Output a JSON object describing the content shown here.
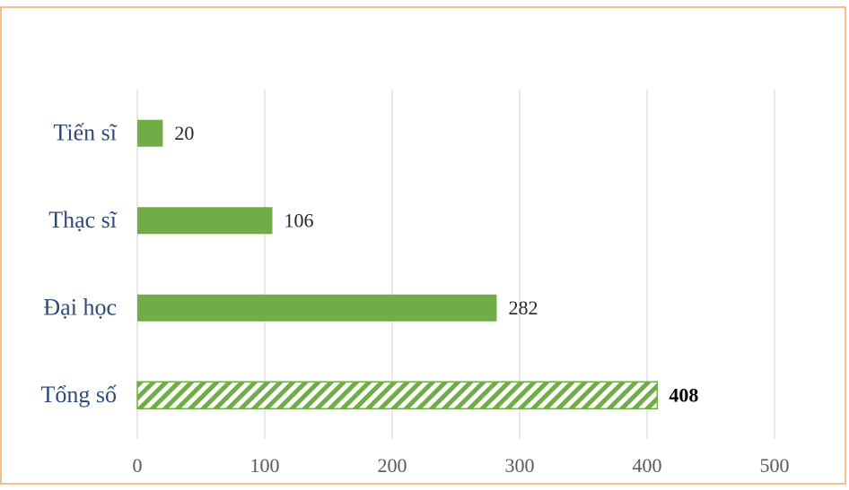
{
  "chart_data": {
    "type": "hbar",
    "categories": [
      "Tiến sĩ",
      "Thạc sĩ",
      "Đại học",
      "Tổng số"
    ],
    "values": [
      20,
      106,
      282,
      408
    ],
    "hatched": [
      false,
      false,
      false,
      true
    ],
    "color": "#70ad47",
    "xlim": [
      0,
      500
    ],
    "xticks": [
      0,
      100,
      200,
      300,
      400,
      500
    ],
    "grid": true
  }
}
